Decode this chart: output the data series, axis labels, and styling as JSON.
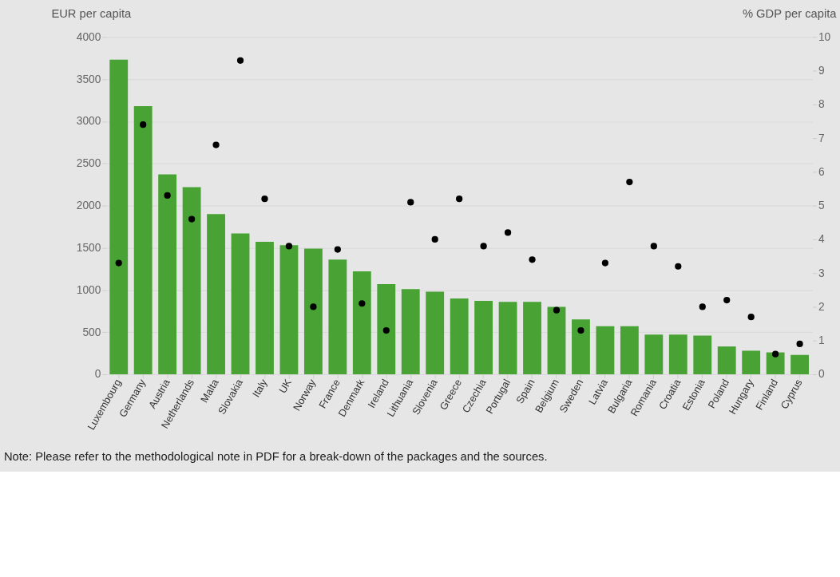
{
  "chart_data": {
    "type": "bar",
    "ylabel": "EUR per capita",
    "y2label": "% GDP per capita",
    "categories": [
      "Luxembourg",
      "Germany",
      "Austria",
      "Netherlands",
      "Malta",
      "Slovakia",
      "Italy",
      "UK",
      "Norway",
      "France",
      "Denmark",
      "Ireland",
      "Lithuania",
      "Slovenia",
      "Greece",
      "Czechia",
      "Portugal",
      "Spain",
      "Belgium",
      "Sweden",
      "Latvia",
      "Bulgaria",
      "Romania",
      "Croatia",
      "Estonia",
      "Poland",
      "Hungary",
      "Finland",
      "Cyprus"
    ],
    "series": [
      {
        "color": "#48a334",
        "values": [
          3730,
          3180,
          2370,
          2220,
          1900,
          1670,
          1570,
          1530,
          1490,
          1360,
          1220,
          1070,
          1010,
          980,
          900,
          870,
          860,
          860,
          800,
          650,
          570,
          570,
          470,
          470,
          460,
          330,
          280,
          260,
          230
        ]
      },
      {
        "type": "scatter",
        "axis": "y2",
        "color": "#000000",
        "values": [
          3.3,
          7.4,
          5.3,
          4.6,
          6.8,
          9.3,
          5.2,
          3.8,
          2.0,
          3.7,
          2.1,
          1.3,
          5.1,
          4.0,
          5.2,
          3.8,
          4.2,
          3.4,
          1.9,
          1.3,
          3.3,
          5.7,
          3.8,
          3.2,
          2.0,
          2.2,
          1.7,
          0.6,
          0.9
        ]
      }
    ],
    "ylim": [
      0,
      4000
    ],
    "yticks": [
      0,
      500,
      1000,
      1500,
      2000,
      2500,
      3000,
      3500,
      4000
    ],
    "y2lim": [
      0,
      10
    ],
    "y2ticks": [
      0,
      1,
      2,
      3,
      4,
      5,
      6,
      7,
      8,
      9,
      10
    ],
    "grid": "y",
    "marker": "circle",
    "annotations": [
      "Note: Please refer to the methodological note in PDF for a break-down of the packages and the sources."
    ]
  }
}
